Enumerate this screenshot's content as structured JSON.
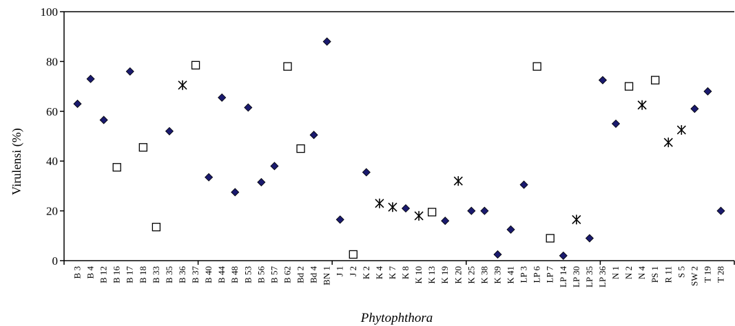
{
  "chart_data": {
    "type": "scatter",
    "xlabel": "Phytophthora",
    "ylabel": "Virulensi (%)",
    "ylim": [
      0,
      100
    ],
    "yticks": [
      0,
      20,
      40,
      60,
      80,
      100
    ],
    "grid": false,
    "legend": "none",
    "categories": [
      "B 3",
      "B 4",
      "B 12",
      "B 16",
      "B 17",
      "B 18",
      "B 33",
      "B 35",
      "B 36",
      "B 37",
      "B 40",
      "B 44",
      "B 48",
      "B 53",
      "B 56",
      "B 57",
      "B 62",
      "Bd 2",
      "Bd 4",
      "BN 1",
      "J 1",
      "J 2",
      "K 2",
      "K 4",
      "K 7",
      "K 8",
      "K 10",
      "K 13",
      "K 19",
      "K 20",
      "K 25",
      "K 38",
      "K 39",
      "K 41",
      "LP 3",
      "LP 6",
      "LP 7",
      "LP 14",
      "LP 30",
      "LP 35",
      "LP 36",
      "N 1",
      "N 2",
      "N 4",
      "PS 1",
      "R 11",
      "S 5",
      "SW 2",
      "T 19",
      "T 28"
    ],
    "values": [
      63,
      73,
      56.5,
      37.5,
      76,
      45.5,
      13.5,
      52,
      70.5,
      78.5,
      33.5,
      65.5,
      27.5,
      61.5,
      31.5,
      38,
      78,
      45,
      50.5,
      88,
      16.5,
      2.5,
      35.5,
      23,
      21.5,
      21,
      18,
      19.5,
      16,
      32,
      20,
      20,
      2.5,
      12.5,
      30.5,
      78,
      9,
      2,
      16.5,
      9,
      72.5,
      55,
      70,
      62.5,
      72.5,
      47.5,
      52.5,
      61,
      68,
      20
    ],
    "markers": [
      "diamond",
      "diamond",
      "diamond",
      "square",
      "diamond",
      "square",
      "square",
      "diamond",
      "star",
      "square",
      "diamond",
      "diamond",
      "diamond",
      "diamond",
      "diamond",
      "diamond",
      "square",
      "square",
      "diamond",
      "diamond",
      "diamond",
      "square",
      "diamond",
      "star",
      "star",
      "diamond",
      "star",
      "square",
      "diamond",
      "star",
      "diamond",
      "diamond",
      "diamond",
      "diamond",
      "diamond",
      "square",
      "square",
      "diamond",
      "star",
      "diamond",
      "diamond",
      "diamond",
      "square",
      "star",
      "square",
      "star",
      "star",
      "diamond",
      "diamond",
      "diamond"
    ],
    "colors": {
      "diamond_fill": "#1a1a6e",
      "diamond_stroke": "#000000",
      "square_fill": "#ffffff",
      "square_stroke": "#000000",
      "star_stroke": "#000000",
      "axis": "#000000"
    }
  }
}
